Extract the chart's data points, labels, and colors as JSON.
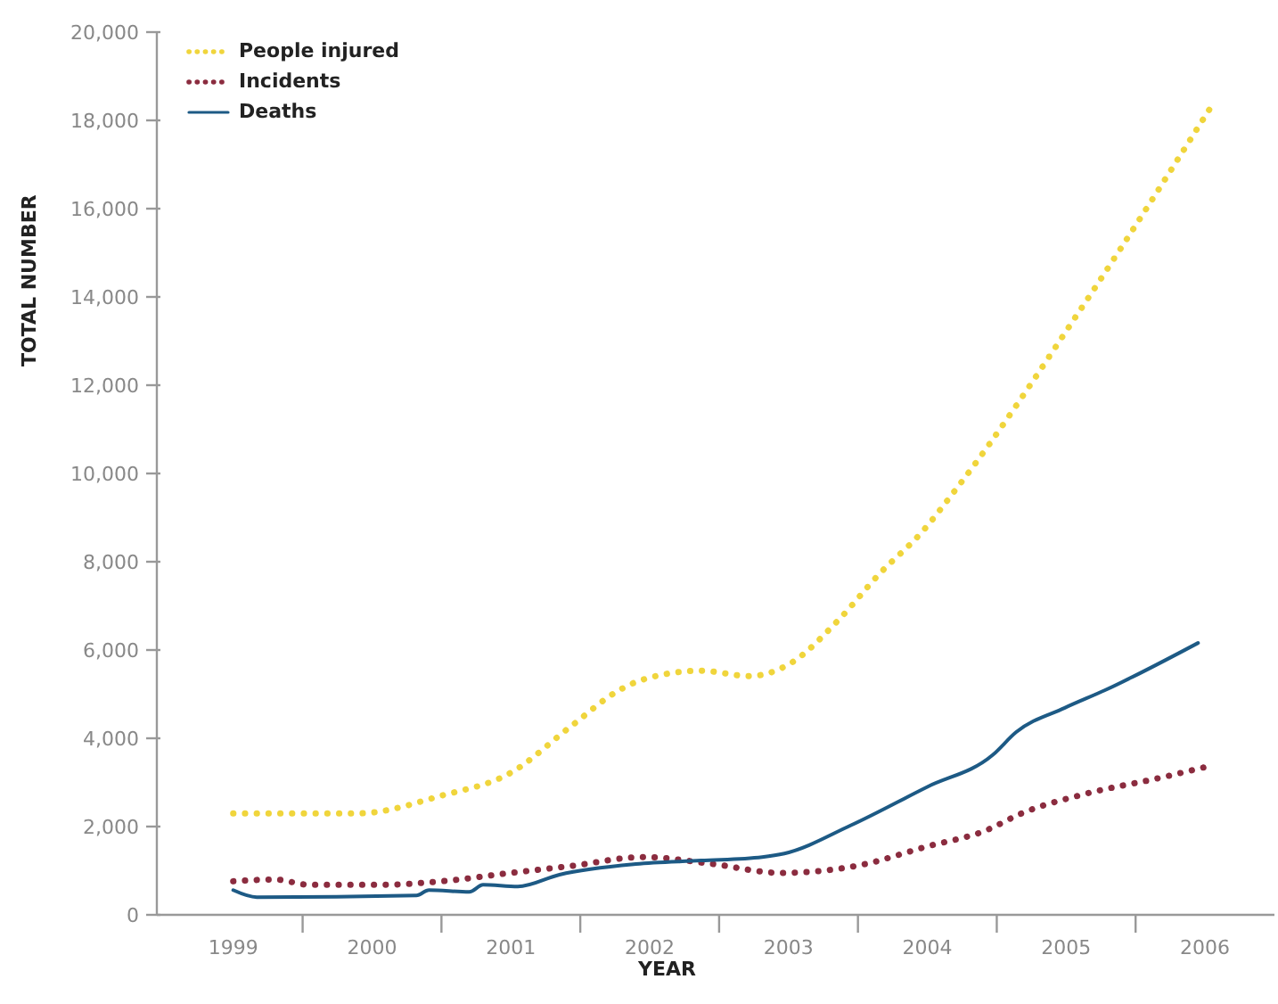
{
  "chart_data": {
    "type": "line",
    "xlabel": "YEAR",
    "ylabel": "TOTAL NUMBER",
    "xlim": [
      1998.45,
      2006.5
    ],
    "xticks": [
      {
        "value": 1999,
        "label": "1999"
      },
      {
        "value": 1999.5,
        "label": null
      },
      {
        "value": 2000,
        "label": "2000"
      },
      {
        "value": 2000.5,
        "label": null
      },
      {
        "value": 2001,
        "label": "2001"
      },
      {
        "value": 2001.5,
        "label": null
      },
      {
        "value": 2002,
        "label": "2002"
      },
      {
        "value": 2002.5,
        "label": null
      },
      {
        "value": 2003,
        "label": "2003"
      },
      {
        "value": 2003.5,
        "label": null
      },
      {
        "value": 2004,
        "label": "2004"
      },
      {
        "value": 2004.5,
        "label": null
      },
      {
        "value": 2005,
        "label": "2005"
      },
      {
        "value": 2005.5,
        "label": null
      },
      {
        "value": 2006,
        "label": "2006"
      }
    ],
    "ylim": [
      0,
      20000
    ],
    "yticks": [
      0,
      {
        "value": 2000,
        "label": "2,000"
      },
      {
        "value": 4000,
        "label": "4,000"
      },
      {
        "value": 6000,
        "label": "6,000"
      },
      {
        "value": 8000,
        "label": "8,000"
      },
      {
        "value": 10000,
        "label": "10,000"
      },
      {
        "value": 12000,
        "label": "12,000"
      },
      {
        "value": 14000,
        "label": "14,000"
      },
      {
        "value": 16000,
        "label": "16,000"
      },
      {
        "value": 18000,
        "label": "18,000"
      },
      {
        "value": 20000,
        "label": "20,000"
      }
    ],
    "grid": false,
    "legend": "top left",
    "marker": "none",
    "series": [
      {
        "name": "People injured",
        "color": "#f0d53c",
        "line_style": "dotted",
        "x": [
          1999,
          1999.9,
          2000.5,
          2001.0,
          2001.44,
          2001.78,
          2001.95,
          2002.37,
          2002.72,
          2003.01,
          2003.36,
          2003.65,
          2003.96,
          2004.22,
          2005.13,
          2006.04
        ],
        "values": [
          2300,
          2300,
          2700,
          3220,
          4290,
          5090,
          5330,
          5530,
          5410,
          5690,
          6680,
          7710,
          8670,
          9700,
          13840,
          18290
        ]
      },
      {
        "name": "Incidents",
        "color": "#8b2c3f",
        "line_style": "dotted",
        "x": [
          1999,
          1999.3,
          1999.55,
          2000.06,
          2000.5,
          2001.0,
          2001.44,
          2001.95,
          2002.46,
          2002.94,
          2003.49,
          2004.0,
          2004.42,
          2004.68,
          2005.15,
          2005.67,
          2005.99
        ],
        "values": [
          760,
          800,
          680,
          680,
          760,
          950,
          1110,
          1310,
          1150,
          950,
          1110,
          1550,
          1910,
          2300,
          2750,
          3100,
          3340
        ]
      },
      {
        "name": "Deaths",
        "color": "#1d5a85",
        "line_style": "solid",
        "x": [
          1999,
          1999.17,
          2000.32,
          2000.41,
          2000.7,
          2000.8,
          2001.05,
          2001.35,
          2001.9,
          2002.37,
          2002.81,
          2002.97,
          2003.45,
          2004.0,
          2004.47,
          2004.64,
          2004.99,
          2005.28,
          2005.95
        ],
        "values": [
          560,
          400,
          440,
          560,
          520,
          680,
          640,
          910,
          1150,
          1230,
          1310,
          1390,
          2030,
          2900,
          3620,
          4140,
          4690,
          5090,
          6160
        ]
      }
    ]
  }
}
